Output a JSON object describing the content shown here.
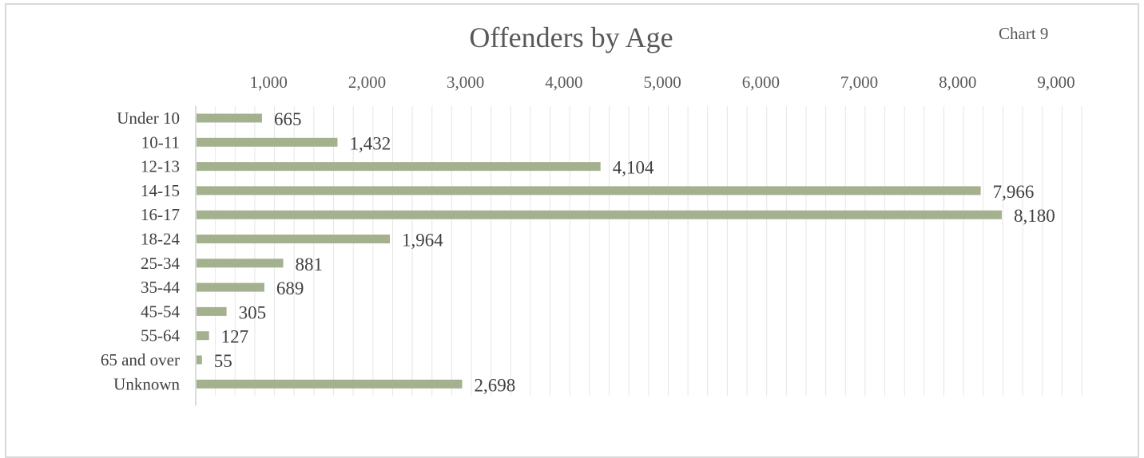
{
  "chart_data": {
    "type": "bar",
    "orientation": "horizontal",
    "title": "Offenders by Age",
    "chart_label": "Chart 9",
    "categories": [
      "Under 10",
      "10-11",
      "12-13",
      "14-15",
      "16-17",
      "18-24",
      "25-34",
      "35-44",
      "45-54",
      "55-64",
      "65 and over",
      "Unknown"
    ],
    "values": [
      665,
      1432,
      4104,
      7966,
      8180,
      1964,
      881,
      689,
      305,
      127,
      55,
      2698
    ],
    "value_labels": [
      "665",
      "1,432",
      "4,104",
      "7,966",
      "8,180",
      "1,964",
      "881",
      "689",
      "305",
      "127",
      "55",
      "2,698"
    ],
    "x_ticks": [
      1000,
      2000,
      3000,
      4000,
      5000,
      6000,
      7000,
      8000,
      9000
    ],
    "x_tick_labels": [
      "1,000",
      "2,000",
      "3,000",
      "4,000",
      "5,000",
      "6,000",
      "7,000",
      "8,000",
      "9,000"
    ],
    "xlim": [
      0,
      9000
    ],
    "x_axis_position": "top",
    "minor_gridline_step": 200,
    "grid": true,
    "legend": "none",
    "colors": {
      "bar": "#a3b18e",
      "gridline": "#e6e6e6",
      "axis_line": "#d0d0d0",
      "text": "#404040",
      "tick_text": "#595959",
      "title": "#595959"
    }
  }
}
